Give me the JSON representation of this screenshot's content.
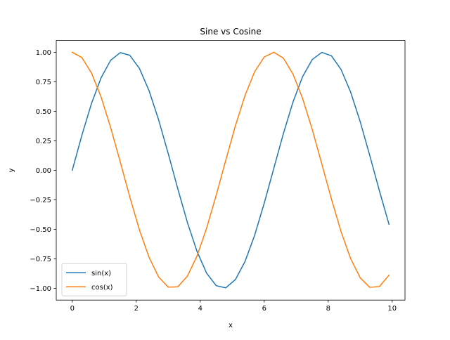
{
  "chart_data": {
    "type": "line",
    "title": "Sine vs Cosine",
    "xlabel": "x",
    "ylabel": "y",
    "xlim": [
      -0.5,
      10.4
    ],
    "ylim": [
      -1.1,
      1.1
    ],
    "x_ticks": [
      0,
      2,
      4,
      6,
      8,
      10
    ],
    "x_tick_labels": [
      "0",
      "2",
      "4",
      "6",
      "8",
      "10"
    ],
    "y_ticks": [
      -1.0,
      -0.75,
      -0.5,
      -0.25,
      0.0,
      0.25,
      0.5,
      0.75,
      1.0
    ],
    "y_tick_labels": [
      "−1.00",
      "−0.75",
      "−0.50",
      "−0.25",
      "0.00",
      "0.25",
      "0.50",
      "0.75",
      "1.00"
    ],
    "grid": false,
    "legend_position": "lower-left",
    "x": [
      0.0,
      0.3,
      0.6,
      0.9,
      1.2,
      1.5,
      1.8,
      2.1,
      2.4,
      2.7,
      3.0,
      3.3,
      3.6,
      3.9,
      4.2,
      4.5,
      4.8,
      5.1,
      5.4,
      5.7,
      6.0,
      6.3,
      6.6,
      6.9,
      7.2,
      7.5,
      7.8,
      8.1,
      8.4,
      8.7,
      9.0,
      9.3,
      9.6,
      9.9
    ],
    "series": [
      {
        "name": "sin(x)",
        "color": "#1f77b4",
        "values": [
          0.0,
          0.296,
          0.565,
          0.783,
          0.932,
          0.997,
          0.974,
          0.863,
          0.675,
          0.427,
          0.141,
          -0.158,
          -0.443,
          -0.688,
          -0.872,
          -0.978,
          -0.996,
          -0.926,
          -0.773,
          -0.551,
          -0.279,
          0.017,
          0.312,
          0.579,
          0.794,
          0.938,
          0.999,
          0.97,
          0.855,
          0.663,
          0.412,
          0.124,
          -0.174,
          -0.458
        ]
      },
      {
        "name": "cos(x)",
        "color": "#ff7f0e",
        "values": [
          1.0,
          0.955,
          0.825,
          0.622,
          0.362,
          0.071,
          -0.227,
          -0.505,
          -0.737,
          -0.904,
          -0.99,
          -0.987,
          -0.897,
          -0.726,
          -0.49,
          -0.211,
          0.087,
          0.378,
          0.634,
          0.835,
          0.96,
          1.0,
          0.95,
          0.815,
          0.608,
          0.347,
          0.054,
          -0.243,
          -0.519,
          -0.748,
          -0.911,
          -0.992,
          -0.985,
          -0.889
        ]
      }
    ]
  }
}
